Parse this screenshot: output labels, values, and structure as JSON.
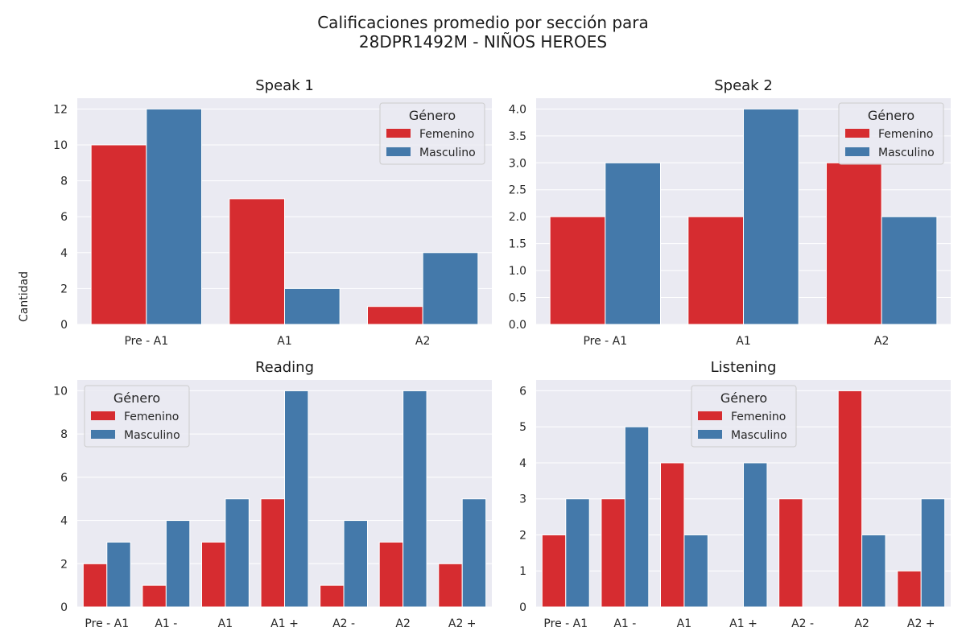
{
  "title_lines": [
    "Calificaciones promedio por sección para",
    "28DPR1492M - NIÑOS HEROES"
  ],
  "ylabel": "Cantidad",
  "colors": {
    "Femenino": "#d62c30",
    "Masculino": "#4479aa",
    "background": "#eaeaf2",
    "grid": "#ffffff"
  },
  "chart_data": [
    {
      "type": "bar",
      "title": "Speak 1",
      "categories": [
        "Pre - A1",
        "A1",
        "A2"
      ],
      "series": [
        {
          "name": "Femenino",
          "values": [
            10,
            7,
            1
          ]
        },
        {
          "name": "Masculino",
          "values": [
            12,
            2,
            4
          ]
        }
      ],
      "ylim": [
        0,
        12.6
      ],
      "yticks": [
        0,
        2,
        4,
        6,
        8,
        10,
        12
      ],
      "ytick_labels": [
        "0",
        "2",
        "4",
        "6",
        "8",
        "10",
        "12"
      ],
      "legend": {
        "title": "Género",
        "placement": "top-right"
      },
      "grid": true
    },
    {
      "type": "bar",
      "title": "Speak 2",
      "categories": [
        "Pre - A1",
        "A1",
        "A2"
      ],
      "series": [
        {
          "name": "Femenino",
          "values": [
            2,
            2,
            3
          ]
        },
        {
          "name": "Masculino",
          "values": [
            3,
            4,
            2
          ]
        }
      ],
      "ylim": [
        0,
        4.2
      ],
      "yticks": [
        0,
        0.5,
        1,
        1.5,
        2,
        2.5,
        3,
        3.5,
        4
      ],
      "ytick_labels": [
        "0.0",
        "0.5",
        "1.0",
        "1.5",
        "2.0",
        "2.5",
        "3.0",
        "3.5",
        "4.0"
      ],
      "legend": {
        "title": "Género",
        "placement": "top-right"
      },
      "grid": true
    },
    {
      "type": "bar",
      "title": "Reading",
      "categories": [
        "Pre - A1",
        "A1 -",
        "A1",
        "A1 +",
        "A2 -",
        "A2",
        "A2 +"
      ],
      "series": [
        {
          "name": "Femenino",
          "values": [
            2,
            1,
            3,
            5,
            1,
            3,
            2
          ]
        },
        {
          "name": "Masculino",
          "values": [
            3,
            4,
            5,
            10,
            4,
            10,
            5
          ]
        }
      ],
      "ylim": [
        0,
        10.5
      ],
      "yticks": [
        0,
        2,
        4,
        6,
        8,
        10
      ],
      "ytick_labels": [
        "0",
        "2",
        "4",
        "6",
        "8",
        "10"
      ],
      "legend": {
        "title": "Género",
        "placement": "top-left"
      },
      "grid": true
    },
    {
      "type": "bar",
      "title": "Listening",
      "categories": [
        "Pre - A1",
        "A1 -",
        "A1",
        "A1 +",
        "A2 -",
        "A2",
        "A2 +"
      ],
      "series": [
        {
          "name": "Femenino",
          "values": [
            2,
            3,
            4,
            0,
            3,
            6,
            1
          ]
        },
        {
          "name": "Masculino",
          "values": [
            3,
            5,
            2,
            4,
            0,
            2,
            3
          ]
        }
      ],
      "ylim": [
        0,
        6.3
      ],
      "yticks": [
        0,
        1,
        2,
        3,
        4,
        5,
        6
      ],
      "ytick_labels": [
        "0",
        "1",
        "2",
        "3",
        "4",
        "5",
        "6"
      ],
      "legend": {
        "title": "Género",
        "placement": "top-center"
      },
      "grid": true
    }
  ]
}
